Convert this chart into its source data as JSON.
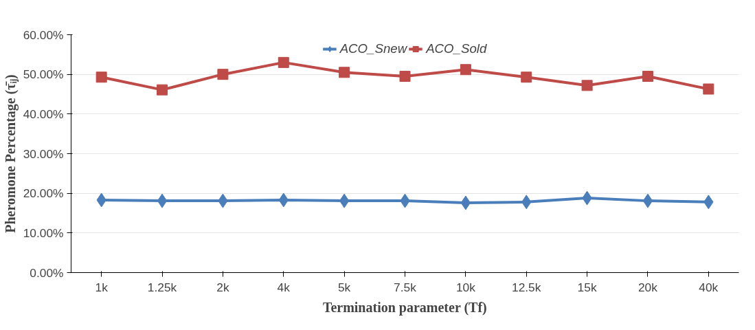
{
  "chart_data": {
    "type": "line",
    "xlabel": "Termination parameter (Tf)",
    "ylabel": "Pheromone Percentage (τ̄ᵢⱼ)",
    "categories": [
      "1k",
      "1.25k",
      "2k",
      "4k",
      "5k",
      "7.5k",
      "10k",
      "12.5k",
      "15k",
      "20k",
      "40k"
    ],
    "ylim": [
      0,
      60
    ],
    "yticks": [
      {
        "value": 0,
        "label": "0.00%"
      },
      {
        "value": 10,
        "label": "10.00%"
      },
      {
        "value": 20,
        "label": "20.00%"
      },
      {
        "value": 30,
        "label": "30.00%"
      },
      {
        "value": 40,
        "label": "40.00%"
      },
      {
        "value": 50,
        "label": "50.00%"
      },
      {
        "value": 60,
        "label": "60.00%"
      }
    ],
    "grid": "y",
    "legend": "top",
    "line_style": "solid",
    "series": [
      {
        "name": "ACO_Snew",
        "color": "#4a7ebb",
        "marker": "diamond",
        "values": [
          18.3,
          18.1,
          18.1,
          18.3,
          18.1,
          18.1,
          17.6,
          17.8,
          18.8,
          18.1,
          17.8
        ]
      },
      {
        "name": "ACO_Sold",
        "color": "#be4b48",
        "marker": "square",
        "values": [
          49.3,
          46.1,
          50.0,
          53.0,
          50.5,
          49.5,
          51.2,
          49.3,
          47.2,
          49.5,
          46.3
        ]
      }
    ]
  }
}
